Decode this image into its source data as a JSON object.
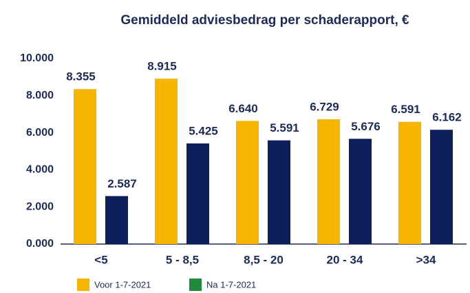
{
  "chart_data": {
    "type": "bar",
    "title": "Gemiddeld adviesbedrag per schaderapport, €",
    "categories": [
      "<5",
      "5 - 8,5",
      "8,5 - 20",
      "20 - 34",
      ">34"
    ],
    "series": [
      {
        "name": "Voor 1-7-2021",
        "color": "#f7b500",
        "values": [
          8355,
          8915,
          6640,
          6729,
          6591
        ],
        "value_labels": [
          "8.355",
          "8.915",
          "6.640",
          "6.729",
          "6.591"
        ]
      },
      {
        "name": "Na 1-7-2021",
        "color": "#0c1f5c",
        "legend_color": "#1e8a3c",
        "values": [
          2587,
          5425,
          5591,
          5676,
          6162
        ],
        "value_labels": [
          "2.587",
          "5.425",
          "5.591",
          "5.676",
          "6.162"
        ]
      }
    ],
    "ylim": [
      0,
      10000
    ],
    "yticks": [
      {
        "value": 0,
        "label": "0.000"
      },
      {
        "value": 2000,
        "label": "2.000"
      },
      {
        "value": 4000,
        "label": "4.000"
      },
      {
        "value": 6000,
        "label": "6.000"
      },
      {
        "value": 8000,
        "label": "8.000"
      },
      {
        "value": 10000,
        "label": "10.000"
      }
    ],
    "grid": false
  }
}
